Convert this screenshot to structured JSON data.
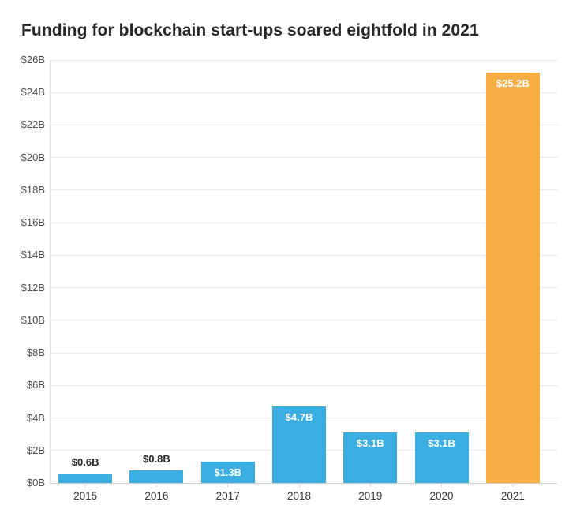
{
  "chart_data": {
    "type": "bar",
    "title": "Funding for blockchain start-ups soared eightfold in 2021",
    "categories": [
      "2015",
      "2016",
      "2017",
      "2018",
      "2019",
      "2020",
      "2021"
    ],
    "values": [
      0.6,
      0.8,
      1.3,
      4.7,
      3.1,
      3.1,
      25.2
    ],
    "bar_labels": [
      "$0.6B",
      "$0.8B",
      "$1.3B",
      "$4.7B",
      "$3.1B",
      "$3.1B",
      "$25.2B"
    ],
    "bar_colors": [
      "#3baee1",
      "#3baee1",
      "#3baee1",
      "#3baee1",
      "#3baee1",
      "#3baee1",
      "#f8ae45"
    ],
    "xlabel": "",
    "ylabel": "",
    "ylim": [
      0,
      26
    ],
    "ytick_step": 2,
    "ytick_labels": [
      "$0B",
      "$2B",
      "$4B",
      "$6B",
      "$8B",
      "$10B",
      "$12B",
      "$14B",
      "$16B",
      "$18B",
      "$20B",
      "$22B",
      "$24B",
      "$26B"
    ],
    "grid": "horizontal",
    "legend": "none"
  },
  "colors": {
    "bar_blue": "#3baee1",
    "bar_highlight_orange": "#f8ae45",
    "gridline": "#e9e9e9",
    "axis_baseline": "#cfcfcf",
    "title_text": "#262626",
    "axis_tick_text": "#4d4d4d",
    "value_label_dark": "#262626",
    "value_label_light": "#ffffff",
    "background": "#ffffff"
  }
}
